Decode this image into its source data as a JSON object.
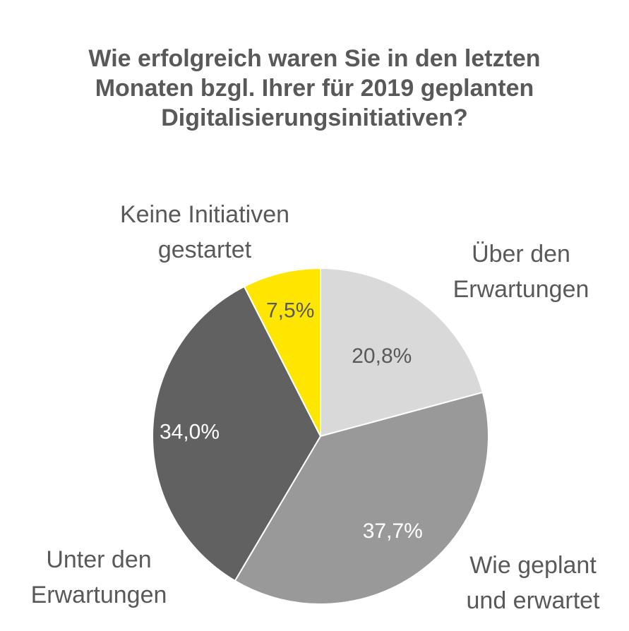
{
  "chart_data": {
    "type": "pie",
    "title_lines": [
      "Wie erfolgreich waren Sie in den letzten",
      "Monaten bzgl. Ihrer für 2019 geplanten",
      "Digitalisierungsinitiativen?"
    ],
    "start_angle_deg": 0,
    "direction": "clockwise",
    "slices": [
      {
        "category_lines": [
          "Über den",
          "Erwartungen"
        ],
        "value": 20.8,
        "value_label": "20,8%",
        "color": "#d9d9d9",
        "label_color": "#595959"
      },
      {
        "category_lines": [
          "Wie geplant",
          "und erwartet"
        ],
        "value": 37.7,
        "value_label": "37,7%",
        "color": "#999999",
        "label_color": "#ffffff"
      },
      {
        "category_lines": [
          "Unter den",
          "Erwartungen"
        ],
        "value": 34.0,
        "value_label": "34,0%",
        "color": "#616161",
        "label_color": "#ffffff"
      },
      {
        "category_lines": [
          "Keine Initiativen",
          "gestartet"
        ],
        "value": 7.5,
        "value_label": "7,5%",
        "color": "#ffe600",
        "label_color": "#595959"
      }
    ]
  }
}
